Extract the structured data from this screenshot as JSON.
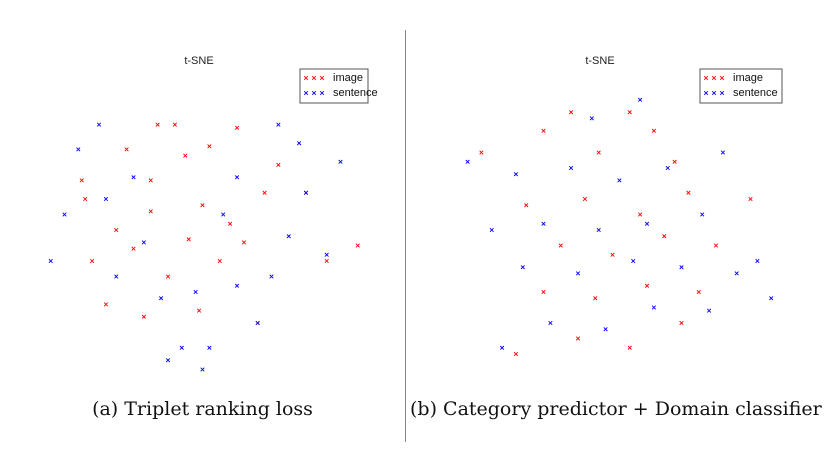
{
  "chart_data": [
    {
      "type": "scatter",
      "title": "t-SNE",
      "caption": "(a) Triplet ranking loss",
      "legend": {
        "placement": "top-right",
        "entries": [
          {
            "label": "image",
            "color": "#ff0000"
          },
          {
            "label": "sentence",
            "color": "#0000ff"
          }
        ]
      },
      "grid": false,
      "axes_visible": false,
      "marker": "x",
      "series": [
        {
          "name": "image",
          "color": "#ff0000",
          "x": [
            0.16,
            0.25,
            0.35,
            0.46,
            0.58,
            0.4,
            0.55,
            0.45,
            0.35,
            0.28,
            0.5,
            0.62,
            0.68,
            0.72,
            0.3,
            0.18,
            0.37,
            0.42,
            0.52,
            0.6,
            0.8,
            0.22,
            0.33,
            0.15,
            0.49,
            0.66,
            0.86,
            0.95
          ],
          "y": [
            0.6,
            0.5,
            0.56,
            0.47,
            0.52,
            0.35,
            0.4,
            0.74,
            0.66,
            0.76,
            0.58,
            0.46,
            0.62,
            0.71,
            0.44,
            0.4,
            0.84,
            0.84,
            0.77,
            0.83,
            0.62,
            0.26,
            0.22,
            0.66,
            0.24,
            0.2,
            0.4,
            0.45
          ]
        },
        {
          "name": "sentence",
          "color": "#0000ff",
          "x": [
            0.1,
            0.22,
            0.38,
            0.52,
            0.66,
            0.75,
            0.86,
            0.8,
            0.78,
            0.9,
            0.6,
            0.33,
            0.25,
            0.3,
            0.48,
            0.72,
            0.56,
            0.6,
            0.7,
            0.44,
            0.14,
            0.06,
            0.2,
            0.4,
            0.5
          ],
          "y": [
            0.55,
            0.6,
            0.28,
            0.12,
            0.2,
            0.48,
            0.42,
            0.62,
            0.78,
            0.72,
            0.32,
            0.46,
            0.35,
            0.67,
            0.3,
            0.84,
            0.55,
            0.67,
            0.35,
            0.12,
            0.76,
            0.4,
            0.84,
            0.08,
            0.05
          ]
        }
      ]
    },
    {
      "type": "scatter",
      "title": "t-SNE",
      "caption": "(b) Category predictor + Domain classifier",
      "legend": {
        "placement": "top-right",
        "entries": [
          {
            "label": "image",
            "color": "#ff0000"
          },
          {
            "label": "sentence",
            "color": "#0000ff"
          }
        ]
      },
      "grid": false,
      "axes_visible": false,
      "marker": "x",
      "series": [
        {
          "name": "image",
          "color": "#ff0000",
          "x": [
            0.22,
            0.4,
            0.55,
            0.7,
            0.3,
            0.45,
            0.6,
            0.75,
            0.35,
            0.5,
            0.65,
            0.8,
            0.25,
            0.42,
            0.58,
            0.72,
            0.9,
            0.12,
            0.46,
            0.68,
            0.3,
            0.38,
            0.55,
            0.62
          ],
          "y": [
            0.1,
            0.15,
            0.12,
            0.2,
            0.3,
            0.28,
            0.32,
            0.3,
            0.45,
            0.42,
            0.48,
            0.45,
            0.58,
            0.6,
            0.55,
            0.62,
            0.6,
            0.75,
            0.75,
            0.72,
            0.82,
            0.88,
            0.88,
            0.82
          ]
        },
        {
          "name": "sentence",
          "color": "#0000ff",
          "x": [
            0.18,
            0.32,
            0.48,
            0.62,
            0.78,
            0.24,
            0.4,
            0.56,
            0.7,
            0.86,
            0.15,
            0.3,
            0.46,
            0.6,
            0.76,
            0.92,
            0.22,
            0.38,
            0.52,
            0.66,
            0.82,
            0.08,
            0.96,
            0.44,
            0.58
          ],
          "y": [
            0.12,
            0.2,
            0.18,
            0.25,
            0.24,
            0.38,
            0.36,
            0.4,
            0.38,
            0.36,
            0.5,
            0.52,
            0.5,
            0.52,
            0.55,
            0.4,
            0.68,
            0.7,
            0.66,
            0.7,
            0.75,
            0.72,
            0.28,
            0.86,
            0.92
          ]
        }
      ]
    }
  ]
}
